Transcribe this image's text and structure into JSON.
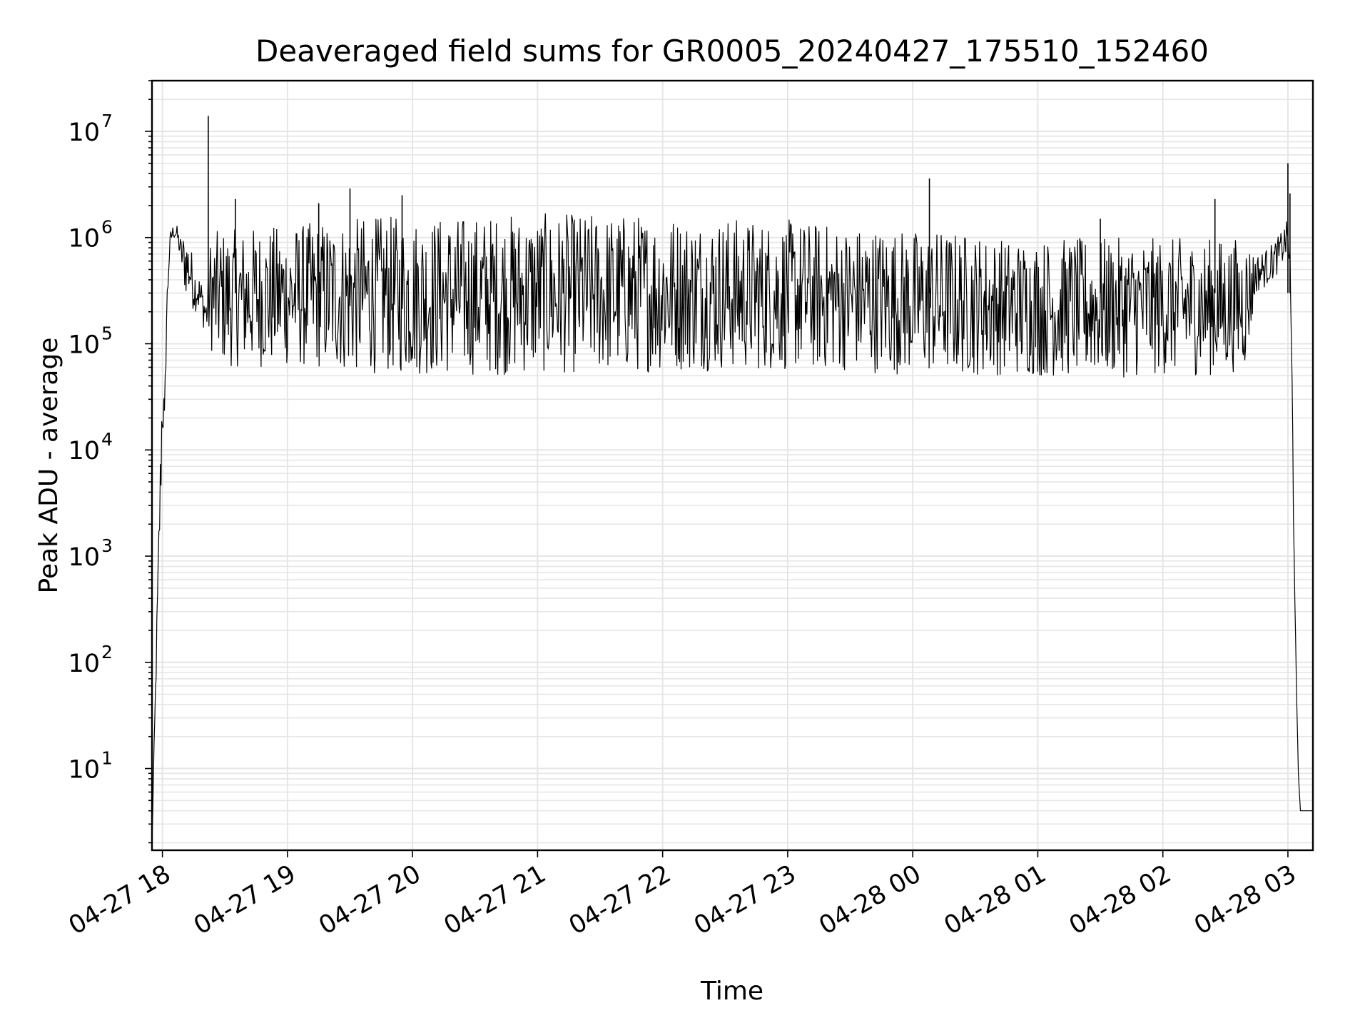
{
  "chart_data": {
    "type": "line",
    "title": "Deaveraged field sums for GR0005_20240427_175510_152460",
    "xlabel": "Time",
    "ylabel": "Peak ADU - average",
    "y_scale": "log",
    "y_base": "10",
    "ylim": [
      1.7,
      30000000
    ],
    "xlim": [
      "2024-04-27 17:55",
      "2024-04-28 03:12"
    ],
    "grid": true,
    "line_color": "#000000",
    "grid_color": "#e6e6e6",
    "x_tick_labels": [
      "04-27 18",
      "04-27 19",
      "04-27 20",
      "04-27 21",
      "04-27 22",
      "04-27 23",
      "04-28 00",
      "04-28 01",
      "04-28 02",
      "04-28 03"
    ],
    "y_tick_labels": [
      {
        "value": 10,
        "exponent": "1"
      },
      {
        "value": 100,
        "exponent": "2"
      },
      {
        "value": 1000,
        "exponent": "3"
      },
      {
        "value": 10000,
        "exponent": "4"
      },
      {
        "value": 100000,
        "exponent": "5"
      },
      {
        "value": 1000000,
        "exponent": "6"
      },
      {
        "value": 10000000,
        "exponent": "7"
      }
    ],
    "series": [
      {
        "x": [
          "2024-04-27 17:55",
          "2024-04-27 18:00",
          "2024-04-27 18:01",
          "2024-04-27 18:02",
          "2024-04-27 18:03",
          "2024-04-27 18:04",
          "2024-04-27 18:05",
          "2024-04-27 18:07",
          "2024-04-27 18:09",
          "2024-04-27 18:11",
          "2024-04-27 18:13",
          "2024-04-27 18:15",
          "2024-04-27 18:17",
          "2024-04-27 18:19",
          "2024-04-27 18:21",
          "2024-04-27 18:23",
          "2024-04-27 18:25",
          "2024-04-27 18:27",
          "2024-04-27 18:28",
          "2024-04-27 18:30",
          "2024-04-27 18:35",
          "2024-04-27 18:40",
          "2024-04-27 18:45",
          "2024-04-27 18:50",
          "2024-04-27 19:00",
          "2024-04-27 19:10",
          "2024-04-27 19:20",
          "2024-04-27 19:30",
          "2024-04-27 19:40",
          "2024-04-27 19:50",
          "2024-04-27 20:00",
          "2024-04-27 20:15",
          "2024-04-27 20:30",
          "2024-04-27 20:45",
          "2024-04-27 21:00",
          "2024-04-27 21:15",
          "2024-04-27 21:30",
          "2024-04-27 21:45",
          "2024-04-27 22:00",
          "2024-04-27 22:15",
          "2024-04-27 22:30",
          "2024-04-27 22:45",
          "2024-04-27 23:00",
          "2024-04-27 23:15",
          "2024-04-27 23:30",
          "2024-04-27 23:45",
          "2024-04-28 00:00",
          "2024-04-28 00:15",
          "2024-04-28 00:30",
          "2024-04-28 00:45",
          "2024-04-28 01:00",
          "2024-04-28 01:15",
          "2024-04-28 01:30",
          "2024-04-28 01:45",
          "2024-04-28 02:00",
          "2024-04-28 02:15",
          "2024-04-28 02:30",
          "2024-04-28 02:40",
          "2024-04-28 02:45",
          "2024-04-28 02:50",
          "2024-04-28 02:55",
          "2024-04-28 03:00",
          "2024-04-28 03:01",
          "2024-04-28 03:02",
          "2024-04-28 03:03",
          "2024-04-28 03:04",
          "2024-04-28 03:05",
          "2024-04-28 03:06",
          "2024-04-28 03:07",
          "2024-04-28 03:08",
          "2024-04-28 03:09",
          "2024-04-28 03:10",
          "2024-04-28 03:12"
        ],
        "low": [
          2,
          10000,
          15000,
          100000,
          400000,
          800000,
          1000000,
          900000,
          500000,
          280000,
          250000,
          200000,
          200000,
          150000,
          120000,
          90000,
          70000,
          65000,
          65000,
          60000,
          60000,
          60000,
          60000,
          58000,
          60000,
          58000,
          55000,
          52000,
          52000,
          52000,
          50000,
          50000,
          50000,
          50000,
          52000,
          52000,
          52000,
          52000,
          55000,
          55000,
          55000,
          55000,
          55000,
          55000,
          55000,
          52000,
          50000,
          50000,
          50000,
          50000,
          48000,
          48000,
          48000,
          48000,
          50000,
          50000,
          50000,
          60000,
          300000,
          350000,
          450000,
          700000,
          300000,
          10000,
          1000,
          50,
          9,
          4,
          4,
          4,
          4,
          4,
          4
        ],
        "high": [
          2,
          90000,
          25000,
          300000,
          800000,
          1200000,
          1300000,
          1300000,
          1000000,
          1200000,
          1000000,
          600000,
          500000,
          400000,
          300000,
          1000000,
          1100000,
          1200000,
          1200000,
          1200000,
          1200000,
          1200000,
          1300000,
          1300000,
          1300000,
          1400000,
          1500000,
          1500000,
          1600000,
          1600000,
          1600000,
          1600000,
          1600000,
          1700000,
          1700000,
          1700000,
          1700000,
          1700000,
          1700000,
          1600000,
          1600000,
          1500000,
          1500000,
          1400000,
          1300000,
          1300000,
          1200000,
          1200000,
          1100000,
          1000000,
          1000000,
          1000000,
          1000000,
          1000000,
          1000000,
          1000000,
          1000000,
          1000000,
          700000,
          800000,
          1000000,
          1500000,
          900000,
          100000,
          1000,
          80,
          9,
          4,
          4,
          4,
          4,
          4,
          4
        ]
      }
    ],
    "spikes": [
      {
        "x": "2024-04-27 18:22",
        "value": 14000000
      },
      {
        "x": "2024-04-27 18:35",
        "value": 2300000
      },
      {
        "x": "2024-04-27 19:15",
        "value": 2100000
      },
      {
        "x": "2024-04-27 19:30",
        "value": 2900000
      },
      {
        "x": "2024-04-27 19:55",
        "value": 2500000
      },
      {
        "x": "2024-04-28 00:08",
        "value": 3600000
      },
      {
        "x": "2024-04-28 01:30",
        "value": 1500000
      },
      {
        "x": "2024-04-28 02:25",
        "value": 2300000
      },
      {
        "x": "2024-04-28 03:00",
        "value": 5000000
      },
      {
        "x": "2024-04-28 03:01",
        "value": 2600000
      }
    ]
  }
}
